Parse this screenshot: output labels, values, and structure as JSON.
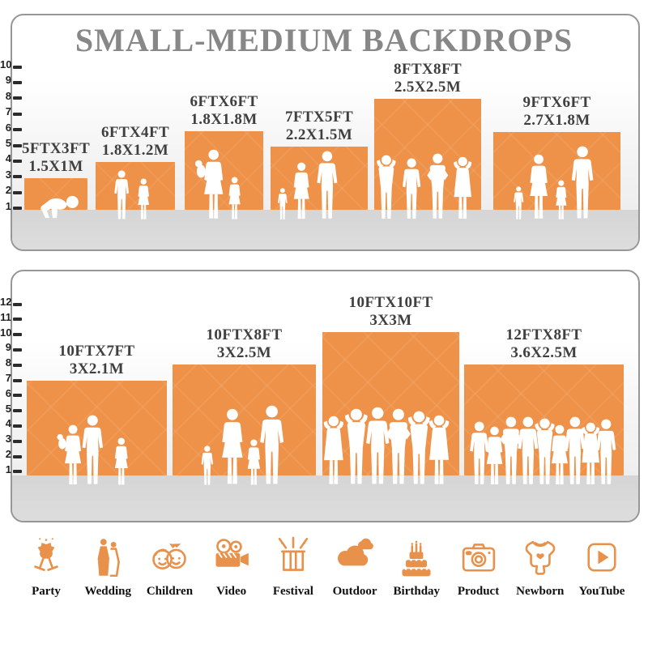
{
  "title": "SMALL-MEDIUM BACKDROPS",
  "colors": {
    "accent_orange": "#EE9249",
    "icon_orange": "#E8914A",
    "title_gray": "#878787",
    "label_gray": "#3F3F3F"
  },
  "panel1": {
    "scale_labels": [
      "10",
      "9",
      "8",
      "7",
      "6",
      "5",
      "4",
      "3",
      "2",
      "1"
    ],
    "backdrops": [
      {
        "size_ft": "5FTX3FT",
        "size_m": "1.5X1M"
      },
      {
        "size_ft": "6FTX4FT",
        "size_m": "1.8X1.2M"
      },
      {
        "size_ft": "6FTX6FT",
        "size_m": "1.8X1.8M"
      },
      {
        "size_ft": "7FTX5FT",
        "size_m": "2.2X1.5M"
      },
      {
        "size_ft": "8FTX8FT",
        "size_m": "2.5X2.5M"
      },
      {
        "size_ft": "9FTX6FT",
        "size_m": "2.7X1.8M"
      }
    ]
  },
  "panel2": {
    "scale_labels": [
      "12",
      "11",
      "10",
      "9",
      "8",
      "7",
      "6",
      "5",
      "4",
      "3",
      "2",
      "1"
    ],
    "backdrops": [
      {
        "size_ft": "10FTX7FT",
        "size_m": "3X2.1M"
      },
      {
        "size_ft": "10FTX8FT",
        "size_m": "3X2.5M"
      },
      {
        "size_ft": "10FTX10FT",
        "size_m": "3X3M"
      },
      {
        "size_ft": "12FTX8FT",
        "size_m": "3.6X2.5M"
      }
    ]
  },
  "categories": [
    {
      "label": "Party"
    },
    {
      "label": "Wedding"
    },
    {
      "label": "Children"
    },
    {
      "label": "Video"
    },
    {
      "label": "Festival"
    },
    {
      "label": "Outdoor"
    },
    {
      "label": "Birthday"
    },
    {
      "label": "Product"
    },
    {
      "label": "Newborn"
    },
    {
      "label": "YouTube"
    }
  ]
}
